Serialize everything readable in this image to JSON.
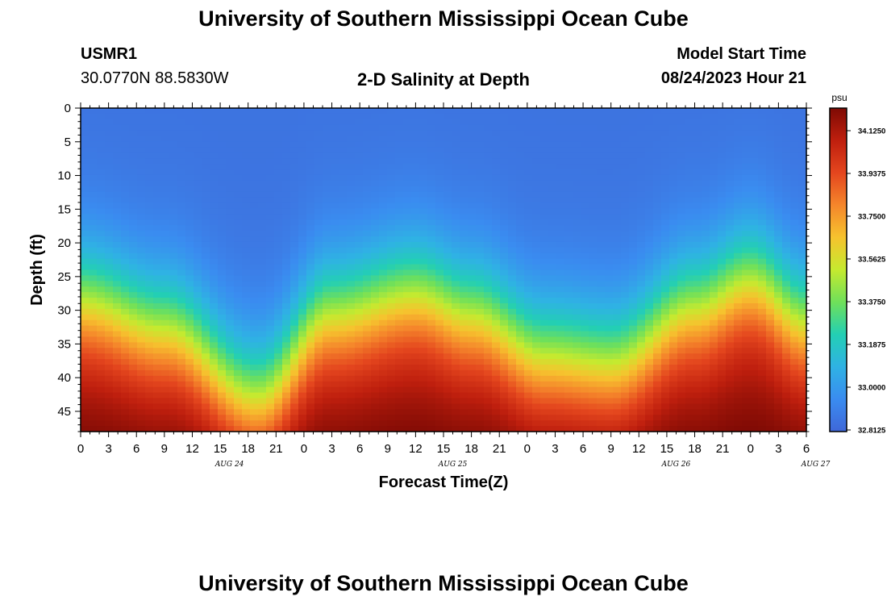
{
  "header": {
    "title": "University of Southern Mississippi Ocean Cube",
    "station_id": "USMR1",
    "station_coords": "30.0770N  88.5830W",
    "plot_subtitle": "2-D Salinity at Depth",
    "model_start_label": "Model Start Time",
    "model_start_value": "08/24/2023 Hour 21"
  },
  "footer": {
    "title": "University of Southern Mississippi Ocean Cube"
  },
  "chart_data": {
    "type": "heatmap",
    "title": "2-D Salinity at Depth",
    "xlabel": "Forecast Time(Z)",
    "ylabel": "Depth (ft)",
    "x_tick_labels": [
      "0",
      "3",
      "6",
      "9",
      "12",
      "15",
      "18",
      "21",
      "0",
      "3",
      "6",
      "9",
      "12",
      "15",
      "18",
      "21",
      "0",
      "3",
      "6",
      "9",
      "12",
      "15",
      "18",
      "21",
      "0",
      "3",
      "6"
    ],
    "date_labels": [
      {
        "label": "AUG 24",
        "hours_from_start": 16
      },
      {
        "label": "AUG 25",
        "hours_from_start": 40
      },
      {
        "label": "AUG 26",
        "hours_from_start": 64
      },
      {
        "label": "AUG 27",
        "hours_from_start": 79
      }
    ],
    "x_range_hours": [
      0,
      78
    ],
    "y_tick_labels": [
      "0",
      "5",
      "10",
      "15",
      "20",
      "25",
      "30",
      "35",
      "40",
      "45"
    ],
    "y_tick_values": [
      0,
      5,
      10,
      15,
      20,
      25,
      30,
      35,
      40,
      45
    ],
    "ylim": [
      0,
      48
    ],
    "y_inverted": true,
    "colorbar": {
      "unit": "psu",
      "labels": [
        "34.1250",
        "33.9375",
        "33.7500",
        "33.5625",
        "33.3750",
        "33.1875",
        "33.0000",
        "32.8125"
      ],
      "range": [
        32.8125,
        34.2188
      ],
      "colors": [
        "#3f67d8",
        "#3a8cf0",
        "#2fb2e4",
        "#23cfb4",
        "#6fe05a",
        "#c5ea2f",
        "#f6c32e",
        "#f5862b",
        "#e4461e",
        "#bf1f0e",
        "#7e0a04"
      ]
    },
    "salinity_profile": {
      "description_units": "psu",
      "surface_value": 32.86,
      "bottom_value": 34.2,
      "front_depth_ft_at_hour": [
        {
          "hour": 0,
          "depth": 29
        },
        {
          "hour": 9,
          "depth": 33
        },
        {
          "hour": 19,
          "depth": 43
        },
        {
          "hour": 27,
          "depth": 31
        },
        {
          "hour": 36,
          "depth": 28
        },
        {
          "hour": 42,
          "depth": 31
        },
        {
          "hour": 50,
          "depth": 37
        },
        {
          "hour": 57,
          "depth": 38
        },
        {
          "hour": 66,
          "depth": 30
        },
        {
          "hour": 72,
          "depth": 26
        },
        {
          "hour": 78,
          "depth": 32
        }
      ]
    }
  }
}
